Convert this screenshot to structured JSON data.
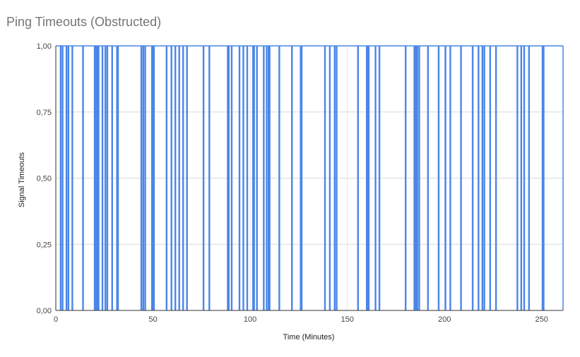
{
  "chart_data": {
    "type": "bar",
    "title": "Ping Timeouts (Obstructed)",
    "xlabel": "Time (Minutes)",
    "ylabel": "Signal Timeouts",
    "xlim": [
      0,
      261
    ],
    "ylim": [
      0,
      1
    ],
    "x_ticks": [
      0,
      50,
      100,
      150,
      200,
      250
    ],
    "x_tick_labels": [
      "0",
      "50",
      "100",
      "150",
      "200",
      "250"
    ],
    "y_ticks": [
      0,
      0.25,
      0.5,
      0.75,
      1
    ],
    "y_tick_labels": [
      "0,00",
      "0,25",
      "0,50",
      "0,75",
      "1,00"
    ],
    "grid": true,
    "legend": "none",
    "series_color": "#4a86e8",
    "series": [
      {
        "x": [
          2.5,
          3.5,
          5.5,
          6.5,
          8.5,
          14,
          20,
          20.5,
          21,
          21.5,
          22,
          24,
          25.5,
          26.5,
          29,
          31.5,
          32,
          44,
          45,
          46,
          49.5,
          50,
          50.5,
          57,
          59.5,
          61.5,
          63.5,
          65.5,
          67.5,
          76,
          79,
          88.5,
          89,
          90.5,
          94.5,
          96.5,
          98.5,
          101.5,
          102,
          103.5,
          107,
          108.5,
          109.5,
          110,
          115,
          121.5,
          126,
          126.5,
          138.5,
          141,
          143.5,
          144.5,
          155.5,
          160,
          160.5,
          161,
          164.5,
          166.5,
          180,
          184.5,
          185,
          185.5,
          186,
          187,
          191.5,
          197,
          200.5,
          203,
          208.5,
          214.5,
          217.5,
          219.5,
          220.5,
          223.5,
          226.5,
          237.5,
          239.5,
          241,
          243.5,
          250.5,
          251
        ],
        "values": [
          1,
          1,
          1,
          1,
          1,
          1,
          1,
          1,
          1,
          1,
          1,
          1,
          1,
          1,
          1,
          1,
          1,
          1,
          1,
          1,
          1,
          1,
          1,
          1,
          1,
          1,
          1,
          1,
          1,
          1,
          1,
          1,
          1,
          1,
          1,
          1,
          1,
          1,
          1,
          1,
          1,
          1,
          1,
          1,
          1,
          1,
          1,
          1,
          1,
          1,
          1,
          1,
          1,
          1,
          1,
          1,
          1,
          1,
          1,
          1,
          1,
          1,
          1,
          1,
          1,
          1,
          1,
          1,
          1,
          1,
          1,
          1,
          1,
          1,
          1,
          1,
          1,
          1,
          1,
          1,
          1
        ]
      }
    ]
  }
}
